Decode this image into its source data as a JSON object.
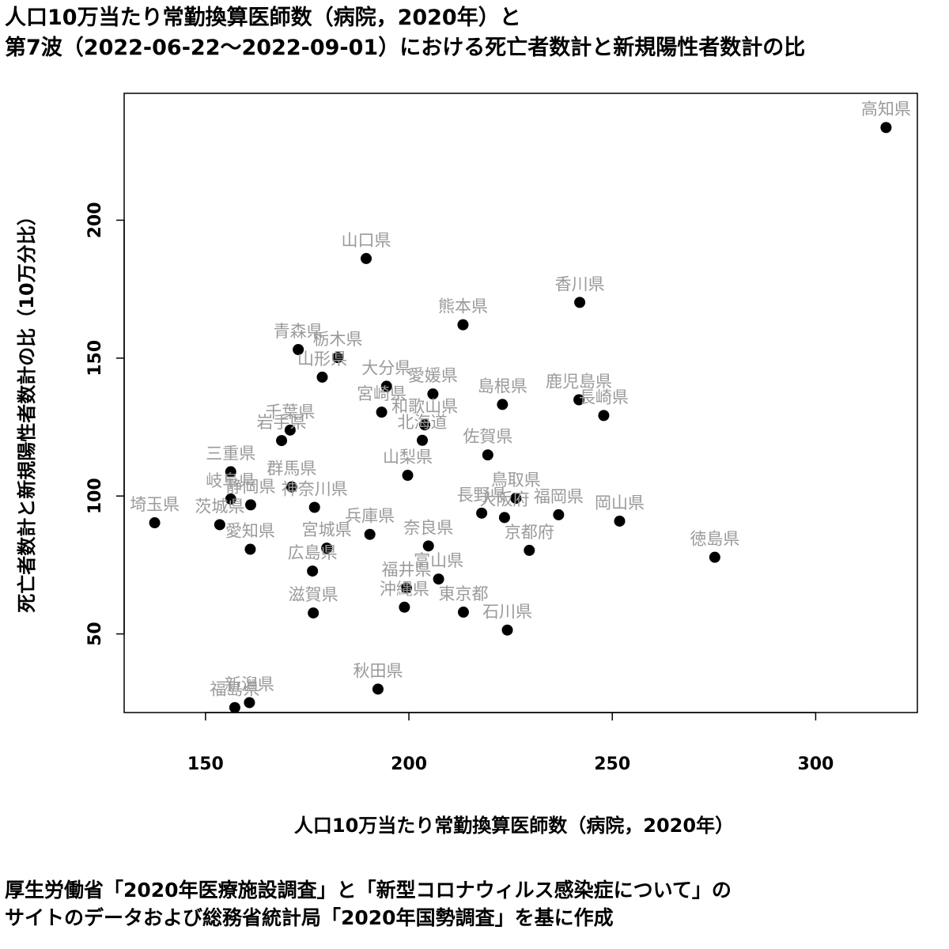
{
  "title_lines": [
    "人口10万当たり常勤換算医師数（病院，2020年）と",
    "第7波（2022-06-22〜2022-09-01）における死亡者数計と新規陽性者数計の比"
  ],
  "source_lines": [
    "厚生労働省「2020年医療施設調査」と「新型コロナウィルス感染症について」の",
    "サイトのデータおよび総務省統計局「2020年国勢調査」を基に作成"
  ],
  "chart_data": {
    "type": "scatter",
    "title": "人口10万当たり常勤換算医師数（病院，2020年）と第7波（2022-06-22〜2022-09-01）における死亡者数計と新規陽性者数計の比",
    "xlabel": "人口10万当たり常勤換算医師数（病院，2020年）",
    "ylabel": "死亡者数計と新規陽性者数計の比（10万分比）",
    "xlim": [
      130,
      325
    ],
    "ylim": [
      21.5,
      246
    ],
    "xticks": [
      150,
      200,
      250,
      300
    ],
    "yticks": [
      50,
      100,
      150,
      200
    ],
    "grid": false,
    "point_color": "#000000",
    "label_color": "#9a9a9a",
    "points": [
      {
        "label": "高知県",
        "x": 317.3,
        "y": 233.6
      },
      {
        "label": "山口県",
        "x": 189.5,
        "y": 186.1
      },
      {
        "label": "香川県",
        "x": 242.0,
        "y": 170.2
      },
      {
        "label": "熊本県",
        "x": 213.3,
        "y": 162.1
      },
      {
        "label": "青森県",
        "x": 172.8,
        "y": 153.1
      },
      {
        "label": "栃木県",
        "x": 182.5,
        "y": 150.2
      },
      {
        "label": "山形県",
        "x": 178.7,
        "y": 143.1
      },
      {
        "label": "大分県",
        "x": 194.5,
        "y": 139.8
      },
      {
        "label": "愛媛県",
        "x": 205.9,
        "y": 137.0
      },
      {
        "label": "島根県",
        "x": 223.0,
        "y": 133.2
      },
      {
        "label": "鹿児島県",
        "x": 241.8,
        "y": 134.9
      },
      {
        "label": "長崎県",
        "x": 247.9,
        "y": 129.2
      },
      {
        "label": "宮崎県",
        "x": 193.3,
        "y": 130.4
      },
      {
        "label": "和歌山県",
        "x": 203.9,
        "y": 125.8
      },
      {
        "label": "千葉県",
        "x": 170.8,
        "y": 123.9
      },
      {
        "label": "岩手県",
        "x": 168.7,
        "y": 120.1
      },
      {
        "label": "北海道",
        "x": 203.3,
        "y": 120.2
      },
      {
        "label": "佐賀県",
        "x": 219.4,
        "y": 114.9
      },
      {
        "label": "三重県",
        "x": 156.2,
        "y": 108.8
      },
      {
        "label": "山梨県",
        "x": 199.7,
        "y": 107.5
      },
      {
        "label": "群馬県",
        "x": 171.2,
        "y": 103.3
      },
      {
        "label": "岐阜県",
        "x": 156.2,
        "y": 98.9
      },
      {
        "label": "静岡県",
        "x": 161.1,
        "y": 96.8
      },
      {
        "label": "神奈川県",
        "x": 176.8,
        "y": 95.9
      },
      {
        "label": "鳥取県",
        "x": 226.3,
        "y": 99.2
      },
      {
        "label": "大阪府",
        "x": 223.5,
        "y": 92.2
      },
      {
        "label": "長野県",
        "x": 217.9,
        "y": 93.8
      },
      {
        "label": "福岡県",
        "x": 236.8,
        "y": 93.2
      },
      {
        "label": "岡山県",
        "x": 251.8,
        "y": 90.9
      },
      {
        "label": "埼玉県",
        "x": 137.5,
        "y": 90.3
      },
      {
        "label": "茨城県",
        "x": 153.5,
        "y": 89.6
      },
      {
        "label": "兵庫県",
        "x": 190.4,
        "y": 86.1
      },
      {
        "label": "奈良県",
        "x": 204.8,
        "y": 81.9
      },
      {
        "label": "宮城県",
        "x": 179.8,
        "y": 81.1
      },
      {
        "label": "愛知県",
        "x": 161.0,
        "y": 80.7
      },
      {
        "label": "京都府",
        "x": 229.6,
        "y": 80.3
      },
      {
        "label": "徳島県",
        "x": 275.2,
        "y": 77.8
      },
      {
        "label": "広島県",
        "x": 176.3,
        "y": 72.8
      },
      {
        "label": "富山県",
        "x": 207.3,
        "y": 69.9
      },
      {
        "label": "福井県",
        "x": 199.4,
        "y": 66.6
      },
      {
        "label": "沖縄県",
        "x": 198.9,
        "y": 59.7
      },
      {
        "label": "滋賀県",
        "x": 176.5,
        "y": 57.6
      },
      {
        "label": "東京都",
        "x": 213.4,
        "y": 57.9
      },
      {
        "label": "石川県",
        "x": 224.2,
        "y": 51.4
      },
      {
        "label": "秋田県",
        "x": 192.4,
        "y": 30.0
      },
      {
        "label": "新潟県",
        "x": 160.8,
        "y": 25.1
      },
      {
        "label": "福島県",
        "x": 157.2,
        "y": 23.3
      }
    ]
  }
}
